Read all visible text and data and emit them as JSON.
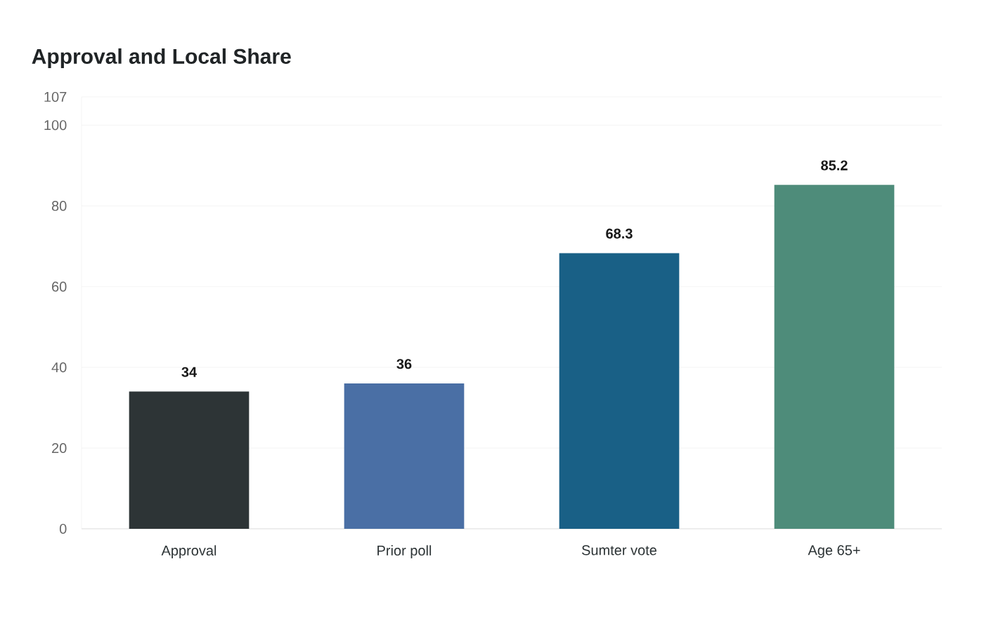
{
  "chart_data": {
    "type": "bar",
    "title": "Approval and Local Share",
    "categories": [
      "Approval",
      "Prior poll",
      "Sumter vote",
      "Age 65+"
    ],
    "values": [
      34,
      36,
      68.3,
      85.2
    ],
    "colors": [
      "#2d3436",
      "#4a6fa5",
      "#196086",
      "#4e8c7a"
    ],
    "ylim": [
      0,
      107
    ],
    "yticks": [
      0,
      20,
      40,
      60,
      80,
      100,
      107
    ],
    "grid": "y",
    "data_labels": true
  }
}
